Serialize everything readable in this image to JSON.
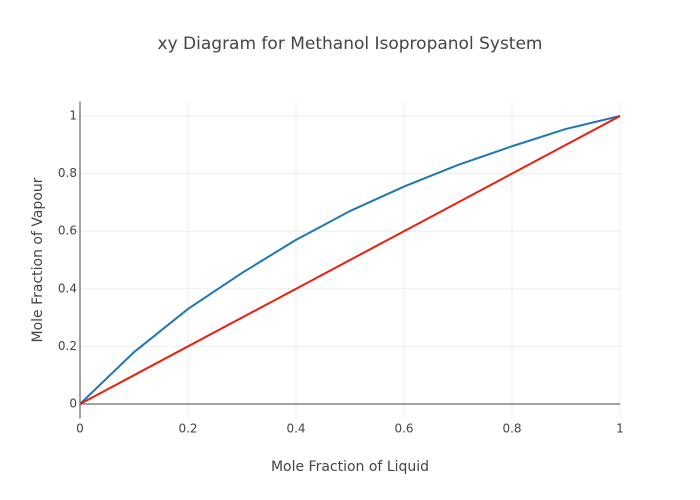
{
  "chart_data": {
    "type": "line",
    "title": "xy Diagram for Methanol Isopropanol System",
    "x_label": "Mole Fraction of Liquid",
    "y_label": "Mole Fraction of Vapour",
    "series": [
      {
        "color": "#1f77b4",
        "x": [
          0,
          0.1,
          0.2,
          0.3,
          0.4,
          0.44,
          0.5,
          0.6,
          0.7,
          0.8,
          0.9,
          1
        ],
        "values": [
          0,
          0.18,
          0.33,
          0.455,
          0.57,
          0.61,
          0.67,
          0.755,
          0.83,
          0.895,
          0.955,
          1
        ]
      },
      {
        "color": "#e8200c",
        "x": [
          0,
          1
        ],
        "values": [
          0,
          1
        ]
      }
    ],
    "xlim": [
      0,
      1
    ],
    "ylim": [
      -0.05,
      1.05
    ],
    "xticks": [
      0,
      0.2,
      0.4,
      0.6,
      0.8,
      1
    ],
    "yticks": [
      0,
      0.2,
      0.4,
      0.6,
      0.8,
      1
    ],
    "grid": true
  }
}
